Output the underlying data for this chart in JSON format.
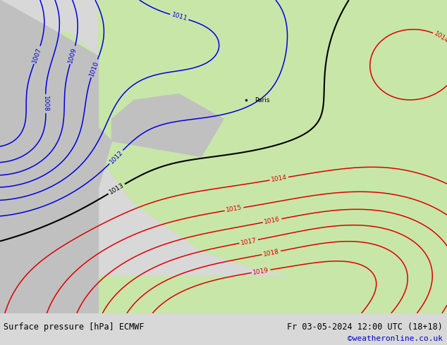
{
  "title_left": "Surface pressure [hPa] ECMWF",
  "title_right": "Fr 03-05-2024 12:00 UTC (18+18)",
  "attribution": "©weatheronline.co.uk",
  "bg_color": "#d8d8d8",
  "land_color_light": "#c8e6a8",
  "ocean_color": "#c8c8d8",
  "gray_color": "#c0c0c0",
  "blue_contour_color": "#0000dd",
  "red_contour_color": "#dd0000",
  "black_contour_color": "#000000",
  "bottom_bar_color": "#ffffff",
  "bottom_text_color": "#000000",
  "attribution_color": "#0000cc",
  "figsize": [
    6.34,
    4.9
  ],
  "dpi": 100
}
